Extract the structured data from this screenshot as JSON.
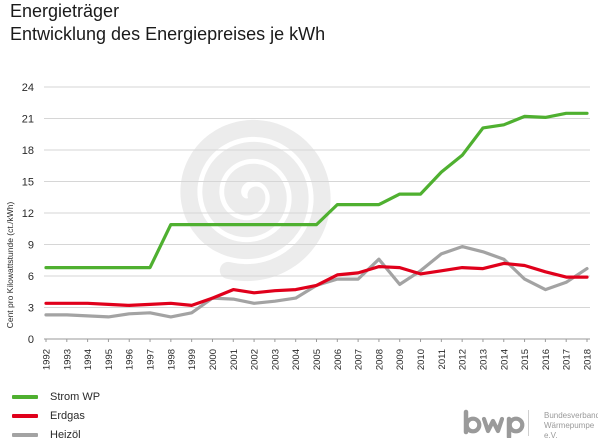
{
  "header": {
    "title": "Energieträger",
    "subtitle": "Entwicklung des Energiepreises je kWh"
  },
  "chart_data": {
    "type": "line",
    "title": "Energieträger",
    "subtitle": "Entwicklung des Energiepreises je kWh",
    "xlabel": "",
    "ylabel": "Cent pro Kilowattstunde (ct./kWh)",
    "ylim": [
      0,
      24
    ],
    "yticks": [
      "0",
      "3",
      "6",
      "9",
      "12",
      "15",
      "18",
      "21",
      "24"
    ],
    "categories": [
      "1992",
      "1993",
      "1994",
      "1995",
      "1996",
      "1997",
      "1998",
      "1999",
      "2000",
      "2001",
      "2002",
      "2003",
      "2004",
      "2005",
      "2006",
      "2007",
      "2008",
      "2009",
      "2010",
      "2011",
      "2012",
      "2013",
      "2014",
      "2015",
      "2016",
      "2017",
      "2018"
    ],
    "grid": true,
    "legend_position": "bottom-left",
    "series": [
      {
        "name": "Strom WP",
        "color": "#4fb030",
        "values": [
          6.8,
          6.8,
          6.8,
          6.8,
          6.8,
          6.8,
          10.9,
          10.9,
          10.9,
          10.9,
          10.9,
          10.9,
          10.9,
          10.9,
          12.8,
          12.8,
          12.8,
          13.8,
          13.8,
          15.9,
          17.5,
          20.1,
          20.4,
          21.2,
          21.1,
          21.5,
          21.5
        ]
      },
      {
        "name": "Erdgas",
        "color": "#e0001b",
        "values": [
          3.4,
          3.4,
          3.4,
          3.3,
          3.2,
          3.3,
          3.4,
          3.2,
          3.9,
          4.7,
          4.4,
          4.6,
          4.7,
          5.1,
          6.1,
          6.3,
          6.9,
          6.8,
          6.2,
          6.5,
          6.8,
          6.7,
          7.2,
          7.0,
          6.4,
          5.9,
          5.9
        ]
      },
      {
        "name": "Heizöl",
        "color": "#a3a3a3",
        "values": [
          2.3,
          2.3,
          2.2,
          2.1,
          2.4,
          2.5,
          2.1,
          2.5,
          3.9,
          3.8,
          3.4,
          3.6,
          3.9,
          5.1,
          5.7,
          5.7,
          7.6,
          5.2,
          6.5,
          8.1,
          8.8,
          8.3,
          7.6,
          5.7,
          4.7,
          5.4,
          6.7
        ]
      }
    ]
  },
  "legend": {
    "items": [
      {
        "label": "Strom WP",
        "color": "#4fb030"
      },
      {
        "label": "Erdgas",
        "color": "#e0001b"
      },
      {
        "label": "Heizöl",
        "color": "#a3a3a3"
      }
    ]
  },
  "logo": {
    "mark": "bwp",
    "line1": "Bundesverband",
    "line2": "Wärmepumpe e.V.",
    "color": "#9a9a9a"
  },
  "watermark": {
    "icon": "spiral-icon",
    "color": "#ececec"
  }
}
